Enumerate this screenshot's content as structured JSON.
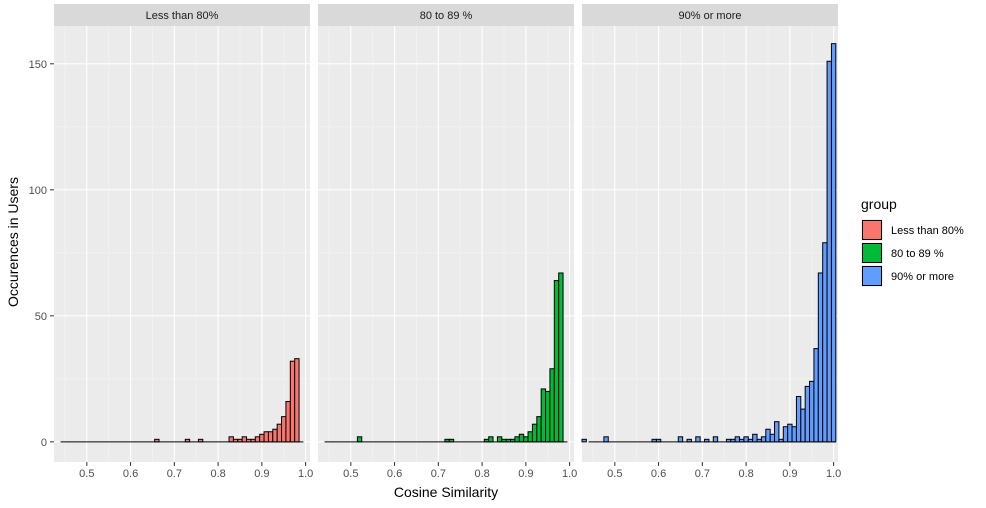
{
  "chart_data": {
    "type": "histogram",
    "xlabel": "Cosine Similarity",
    "ylabel": "Occurences in Users",
    "xlim": [
      0.425,
      1.01
    ],
    "ylim": [
      -8,
      165
    ],
    "x_ticks": [
      0.5,
      0.6,
      0.7,
      0.8,
      0.9,
      1.0
    ],
    "x_tick_labels": [
      "0.5",
      "0.6",
      "0.7",
      "0.8",
      "0.9",
      "1.0"
    ],
    "y_ticks": [
      0,
      50,
      100,
      150
    ],
    "y_tick_labels": [
      "0",
      "50",
      "100",
      "150"
    ],
    "bin_width": 0.01,
    "grid": true,
    "legend_title": "group",
    "legend_position": "right",
    "panels": [
      {
        "name": "Less than 80%",
        "color": "#F8766D",
        "bins": [
          {
            "x": 0.66,
            "y": 1
          },
          {
            "x": 0.73,
            "y": 1
          },
          {
            "x": 0.76,
            "y": 1
          },
          {
            "x": 0.83,
            "y": 2
          },
          {
            "x": 0.84,
            "y": 1
          },
          {
            "x": 0.85,
            "y": 1
          },
          {
            "x": 0.86,
            "y": 2
          },
          {
            "x": 0.87,
            "y": 1
          },
          {
            "x": 0.88,
            "y": 1
          },
          {
            "x": 0.89,
            "y": 2
          },
          {
            "x": 0.9,
            "y": 3
          },
          {
            "x": 0.91,
            "y": 4
          },
          {
            "x": 0.92,
            "y": 4
          },
          {
            "x": 0.93,
            "y": 5
          },
          {
            "x": 0.94,
            "y": 7
          },
          {
            "x": 0.95,
            "y": 10
          },
          {
            "x": 0.96,
            "y": 16
          },
          {
            "x": 0.97,
            "y": 32
          },
          {
            "x": 0.98,
            "y": 33
          }
        ]
      },
      {
        "name": "80 to 89 %",
        "color": "#00BA38",
        "bins": [
          {
            "x": 0.52,
            "y": 2
          },
          {
            "x": 0.72,
            "y": 1
          },
          {
            "x": 0.73,
            "y": 1
          },
          {
            "x": 0.81,
            "y": 1
          },
          {
            "x": 0.82,
            "y": 2
          },
          {
            "x": 0.84,
            "y": 2
          },
          {
            "x": 0.85,
            "y": 1
          },
          {
            "x": 0.86,
            "y": 1
          },
          {
            "x": 0.87,
            "y": 1
          },
          {
            "x": 0.88,
            "y": 2
          },
          {
            "x": 0.89,
            "y": 3
          },
          {
            "x": 0.9,
            "y": 2
          },
          {
            "x": 0.91,
            "y": 4
          },
          {
            "x": 0.92,
            "y": 7
          },
          {
            "x": 0.93,
            "y": 10
          },
          {
            "x": 0.94,
            "y": 21
          },
          {
            "x": 0.95,
            "y": 20
          },
          {
            "x": 0.96,
            "y": 29
          },
          {
            "x": 0.97,
            "y": 64
          },
          {
            "x": 0.98,
            "y": 67
          }
        ]
      },
      {
        "name": "90% or more",
        "color": "#619CFF",
        "bins": [
          {
            "x": 0.43,
            "y": 1
          },
          {
            "x": 0.48,
            "y": 2
          },
          {
            "x": 0.59,
            "y": 1
          },
          {
            "x": 0.6,
            "y": 1
          },
          {
            "x": 0.65,
            "y": 2
          },
          {
            "x": 0.67,
            "y": 1
          },
          {
            "x": 0.69,
            "y": 2
          },
          {
            "x": 0.71,
            "y": 1
          },
          {
            "x": 0.73,
            "y": 2
          },
          {
            "x": 0.76,
            "y": 1
          },
          {
            "x": 0.77,
            "y": 1
          },
          {
            "x": 0.78,
            "y": 2
          },
          {
            "x": 0.79,
            "y": 1
          },
          {
            "x": 0.8,
            "y": 2
          },
          {
            "x": 0.81,
            "y": 1
          },
          {
            "x": 0.82,
            "y": 3
          },
          {
            "x": 0.83,
            "y": 1
          },
          {
            "x": 0.84,
            "y": 2
          },
          {
            "x": 0.85,
            "y": 5
          },
          {
            "x": 0.86,
            "y": 3
          },
          {
            "x": 0.87,
            "y": 8
          },
          {
            "x": 0.88,
            "y": 1
          },
          {
            "x": 0.89,
            "y": 6
          },
          {
            "x": 0.9,
            "y": 7
          },
          {
            "x": 0.91,
            "y": 6
          },
          {
            "x": 0.92,
            "y": 18
          },
          {
            "x": 0.93,
            "y": 13
          },
          {
            "x": 0.94,
            "y": 22
          },
          {
            "x": 0.95,
            "y": 24
          },
          {
            "x": 0.96,
            "y": 37
          },
          {
            "x": 0.97,
            "y": 67
          },
          {
            "x": 0.98,
            "y": 79
          },
          {
            "x": 0.99,
            "y": 151
          },
          {
            "x": 1.0,
            "y": 158
          }
        ]
      }
    ]
  }
}
